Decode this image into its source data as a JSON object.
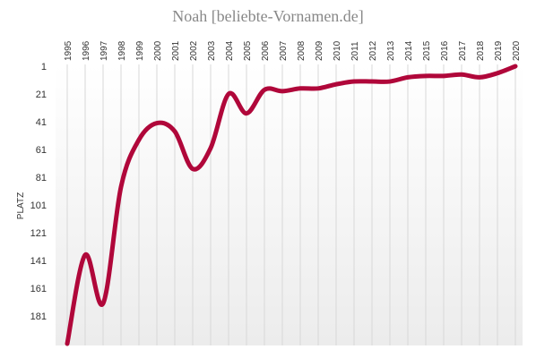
{
  "chart_data": {
    "type": "line",
    "title": "Noah [beliebte-Vornamen.de]",
    "ylabel": "PLATZ",
    "xlabel": "",
    "y_inverted": true,
    "ylim": [
      1,
      201
    ],
    "y_ticks": [
      1,
      21,
      41,
      61,
      81,
      101,
      121,
      141,
      161,
      181
    ],
    "x_axis_position": "top",
    "grid": "vertical",
    "color": "#b0073a",
    "series": [
      {
        "x": [
          1995,
          1996,
          1997,
          1998,
          1999,
          2000,
          2001,
          2002,
          2003,
          2004,
          2005,
          2006,
          2007,
          2008,
          2009,
          2010,
          2011,
          2012,
          2013,
          2014,
          2015,
          2016,
          2017,
          2018,
          2019,
          2020
        ],
        "values": [
          201,
          137,
          172,
          88,
          54,
          42,
          48,
          75,
          60,
          21,
          35,
          18,
          19,
          17,
          17,
          14,
          12,
          12,
          12,
          9,
          8,
          8,
          7,
          9,
          6,
          1
        ]
      }
    ]
  }
}
